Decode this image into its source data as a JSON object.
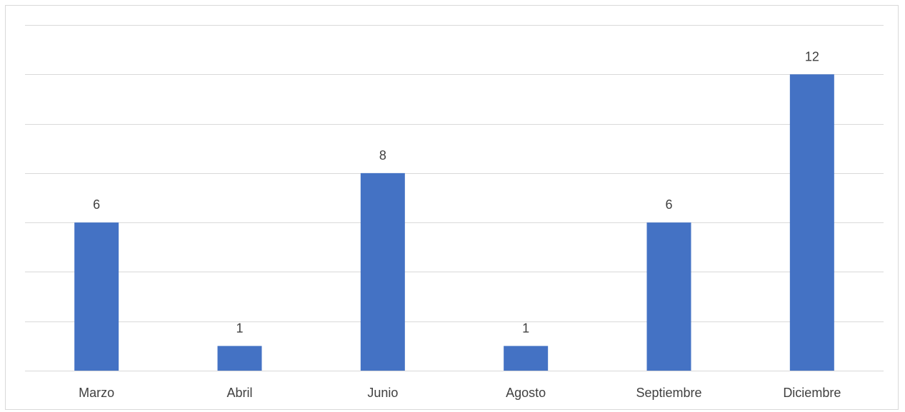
{
  "chart_data": {
    "type": "bar",
    "title": "",
    "xlabel": "",
    "ylabel": "",
    "categories": [
      "Marzo",
      "Abril",
      "Junio",
      "Agosto",
      "Septiembre",
      "Diciembre"
    ],
    "series": [
      {
        "values": [
          6,
          1,
          8,
          1,
          6,
          12
        ]
      }
    ],
    "data_labels": [
      "6",
      "1",
      "8",
      "1",
      "6",
      "12"
    ],
    "ylim": [
      0,
      14
    ],
    "y_major_step": 2,
    "grid": true,
    "legend": "none",
    "bar_color": "#4472c4",
    "grid_color": "#d9d9d9"
  }
}
